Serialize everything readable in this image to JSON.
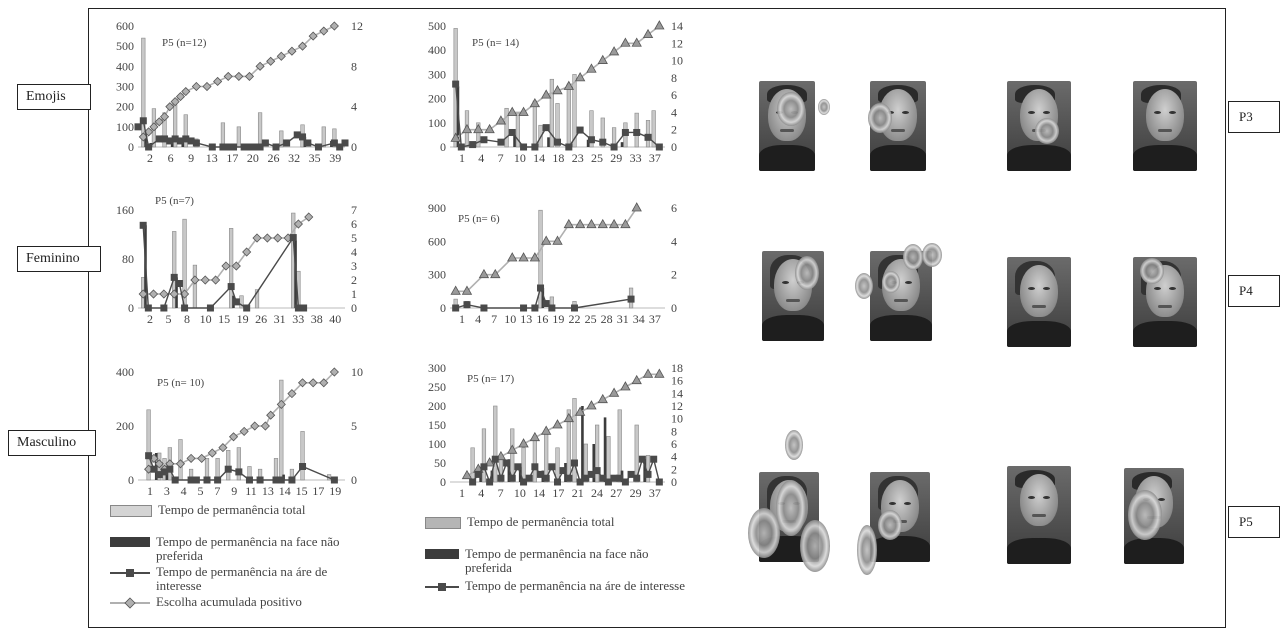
{
  "row_labels": [
    "Emojis",
    "Feminino",
    "Masculino"
  ],
  "participant_labels": [
    "P3",
    "P4",
    "P5"
  ],
  "legend_left": [
    {
      "label": "Tempo de permanência total",
      "kind": "bar-light"
    },
    {
      "label": "Tempo de permanência na face não preferida",
      "kind": "bar-dark"
    },
    {
      "label": "Tempo de permanência na áre de interesse",
      "kind": "line-square"
    },
    {
      "label": "Escolha acumulada positivo",
      "kind": "line-diamond"
    }
  ],
  "legend_right": [
    {
      "label": "Tempo de permanência total",
      "kind": "bar-light"
    },
    {
      "label": "Tempo de permanência na face não preferida",
      "kind": "bar-dark"
    },
    {
      "label": "Tempo de permanência na áre de interesse",
      "kind": "line-square"
    }
  ],
  "chart_data": [
    {
      "type": "bar",
      "title": "P5 (n=12)",
      "xticks": [
        "2",
        "6",
        "9",
        "13",
        "17",
        "20",
        "26",
        "32",
        "35",
        "39"
      ],
      "xrange": [
        1,
        40
      ],
      "ylim": [
        0,
        600
      ],
      "yticks": [
        0,
        100,
        200,
        300,
        400,
        500,
        600
      ],
      "y2lim": [
        0,
        12
      ],
      "y2ticks": [
        0,
        4,
        8,
        12
      ],
      "marker": "diamond",
      "series": [
        {
          "role": "total",
          "x": [
            2,
            4,
            6,
            8,
            10,
            12,
            17,
            20,
            24,
            28,
            32,
            36,
            38
          ],
          "values": [
            540,
            190,
            170,
            210,
            160,
            40,
            120,
            100,
            170,
            80,
            110,
            100,
            90
          ]
        },
        {
          "role": "nonpreferred",
          "x": [
            2,
            3,
            7,
            9,
            22,
            32,
            37
          ],
          "values": [
            60,
            20,
            30,
            20,
            10,
            50,
            30
          ]
        },
        {
          "role": "interest",
          "x": [
            1,
            2,
            3,
            5,
            6,
            7,
            8,
            9,
            10,
            11,
            12,
            15,
            17,
            18,
            19,
            21,
            22,
            23,
            24,
            25,
            27,
            29,
            31,
            32,
            33,
            35,
            38,
            39,
            40
          ],
          "values": [
            100,
            130,
            0,
            40,
            40,
            30,
            40,
            30,
            40,
            30,
            20,
            0,
            0,
            0,
            0,
            0,
            0,
            0,
            0,
            20,
            0,
            20,
            60,
            50,
            20,
            0,
            20,
            0,
            20
          ]
        },
        {
          "role": "cumulative",
          "x": [
            2,
            3,
            4,
            5,
            6,
            7,
            8,
            9,
            10,
            12,
            14,
            16,
            18,
            20,
            22,
            24,
            26,
            28,
            30,
            32,
            34,
            36,
            38
          ],
          "values": [
            1,
            1.5,
            2,
            2.5,
            3,
            4,
            4.5,
            5,
            5.5,
            6,
            6,
            6.5,
            7,
            7,
            7,
            8,
            8.5,
            9,
            9.5,
            10,
            11,
            11.5,
            12
          ]
        }
      ]
    },
    {
      "type": "bar",
      "title": "P5 (n= 14)",
      "xticks": [
        "1",
        "4",
        "7",
        "10",
        "14",
        "18",
        "23",
        "25",
        "29",
        "33",
        "37"
      ],
      "xrange": [
        0,
        38
      ],
      "ylim": [
        0,
        500
      ],
      "yticks": [
        0,
        100,
        200,
        300,
        400,
        500
      ],
      "y2lim": [
        0,
        14
      ],
      "y2ticks": [
        0,
        2,
        4,
        6,
        8,
        10,
        12,
        14
      ],
      "marker": "triangle",
      "series": [
        {
          "role": "total",
          "x": [
            1,
            3,
            5,
            10,
            12,
            15,
            16,
            18,
            19,
            21,
            22,
            25,
            27,
            29,
            31,
            33,
            35,
            36
          ],
          "values": [
            490,
            150,
            100,
            160,
            140,
            190,
            90,
            280,
            180,
            260,
            300,
            150,
            120,
            80,
            100,
            140,
            110,
            150
          ]
        },
        {
          "role": "nonpreferred",
          "x": [
            1,
            11,
            17,
            24,
            30
          ],
          "values": [
            250,
            50,
            40,
            30,
            20
          ]
        },
        {
          "role": "interest",
          "x": [
            1,
            2,
            4,
            6,
            9,
            11,
            13,
            15,
            17,
            19,
            21,
            23,
            25,
            27,
            29,
            31,
            33,
            35,
            37
          ],
          "values": [
            260,
            0,
            10,
            30,
            20,
            60,
            0,
            0,
            80,
            20,
            0,
            70,
            30,
            20,
            0,
            60,
            60,
            40,
            0
          ]
        },
        {
          "role": "cumulative",
          "x": [
            1,
            3,
            5,
            7,
            9,
            11,
            13,
            15,
            17,
            19,
            21,
            23,
            25,
            27,
            29,
            31,
            33,
            35,
            37
          ],
          "values": [
            1,
            2,
            2,
            2,
            3,
            4,
            4,
            5,
            6,
            6.5,
            7,
            8,
            9,
            10,
            11,
            12,
            12,
            13,
            14
          ]
        }
      ]
    },
    {
      "type": "bar",
      "title": "P5 (n=7)",
      "xticks": [
        "2",
        "5",
        "8",
        "10",
        "15",
        "19",
        "26",
        "31",
        "33",
        "38",
        "40"
      ],
      "xrange": [
        1,
        41
      ],
      "ylim": [
        0,
        160
      ],
      "yticks": [
        0,
        80,
        160
      ],
      "y2lim": [
        0,
        7
      ],
      "y2ticks": [
        0,
        1,
        2,
        3,
        4,
        5,
        6,
        7
      ],
      "marker": "diamond",
      "series": [
        {
          "role": "total",
          "x": [
            2,
            8,
            10,
            12,
            19,
            21,
            24,
            31,
            32
          ],
          "values": [
            50,
            125,
            145,
            70,
            130,
            20,
            30,
            155,
            60
          ]
        },
        {
          "role": "nonpreferred",
          "x": [
            2,
            8,
            19,
            31
          ],
          "values": [
            135,
            50,
            20,
            110
          ]
        },
        {
          "role": "interest",
          "x": [
            2,
            3,
            6,
            8,
            9,
            10,
            15,
            19,
            20,
            22,
            31,
            32,
            33
          ],
          "values": [
            135,
            0,
            0,
            50,
            40,
            0,
            0,
            35,
            10,
            0,
            115,
            0,
            0
          ]
        },
        {
          "role": "cumulative",
          "x": [
            2,
            4,
            6,
            8,
            10,
            12,
            14,
            16,
            18,
            20,
            22,
            24,
            26,
            28,
            30,
            32,
            34
          ],
          "values": [
            1,
            1,
            1,
            1,
            1,
            2,
            2,
            2,
            3,
            3,
            4,
            5,
            5,
            5,
            5,
            6,
            6.5
          ]
        }
      ]
    },
    {
      "type": "bar",
      "title": "P5 (n= 6)",
      "xticks": [
        "1",
        "4",
        "7",
        "10",
        "13",
        "16",
        "19",
        "22",
        "25",
        "28",
        "31",
        "34",
        "37"
      ],
      "xrange": [
        0,
        38
      ],
      "ylim": [
        0,
        900
      ],
      "yticks": [
        0,
        300,
        600,
        900
      ],
      "y2lim": [
        0,
        6
      ],
      "y2ticks": [
        0,
        2,
        4,
        6
      ],
      "marker": "triangle",
      "series": [
        {
          "role": "total",
          "x": [
            1,
            3,
            16,
            18,
            22,
            32
          ],
          "values": [
            80,
            60,
            880,
            100,
            60,
            180
          ]
        },
        {
          "role": "nonpreferred",
          "x": [
            16
          ],
          "values": [
            180
          ]
        },
        {
          "role": "interest",
          "x": [
            1,
            3,
            6,
            13,
            15,
            16,
            17,
            18,
            22,
            32
          ],
          "values": [
            0,
            30,
            0,
            0,
            0,
            180,
            40,
            0,
            0,
            80
          ]
        },
        {
          "role": "cumulative",
          "x": [
            1,
            3,
            6,
            8,
            11,
            13,
            15,
            17,
            19,
            21,
            23,
            25,
            27,
            29,
            31,
            33
          ],
          "values": [
            1,
            1,
            2,
            2,
            3,
            3,
            3,
            4,
            4,
            5,
            5,
            5,
            5,
            5,
            5,
            6
          ]
        }
      ]
    },
    {
      "type": "bar",
      "title": "P5 (n= 10)",
      "xticks": [
        "1",
        "3",
        "4",
        "5",
        "7",
        "9",
        "11",
        "13",
        "14",
        "15",
        "17",
        "19"
      ],
      "xrange": [
        0.5,
        20
      ],
      "ylim": [
        0,
        400
      ],
      "yticks": [
        0,
        200,
        400
      ],
      "y2lim": [
        0,
        10
      ],
      "y2ticks": [
        0,
        5,
        10
      ],
      "marker": "diamond",
      "series": [
        {
          "role": "total",
          "x": [
            1.5,
            2.5,
            3,
            3.5,
            4.5,
            5.5,
            7,
            8,
            9,
            10,
            11,
            12,
            13.5,
            14,
            15,
            16,
            18.5
          ],
          "values": [
            260,
            100,
            80,
            120,
            150,
            40,
            80,
            80,
            110,
            120,
            50,
            40,
            80,
            370,
            40,
            180,
            20
          ]
        },
        {
          "role": "nonpreferred",
          "x": [
            2,
            3,
            14
          ],
          "values": [
            100,
            50,
            20
          ]
        },
        {
          "role": "interest",
          "x": [
            1.5,
            2,
            2.5,
            3,
            3.5,
            4,
            5.5,
            6,
            7,
            8,
            9,
            10,
            11,
            12,
            13.5,
            14,
            15,
            16,
            19
          ],
          "values": [
            90,
            40,
            20,
            30,
            40,
            0,
            0,
            0,
            0,
            0,
            40,
            30,
            0,
            0,
            0,
            0,
            0,
            50,
            0
          ]
        },
        {
          "role": "cumulative",
          "x": [
            1.5,
            2,
            2.5,
            3,
            3.5,
            4.5,
            5.5,
            6.5,
            7.5,
            8.5,
            9.5,
            10.5,
            11.5,
            12.5,
            13,
            14,
            15,
            16,
            17,
            18,
            19
          ],
          "values": [
            1,
            2,
            1.5,
            1,
            1.5,
            1.5,
            2,
            2,
            2.5,
            3,
            4,
            4.5,
            5,
            5,
            6,
            7,
            8,
            9,
            9,
            9,
            10
          ]
        }
      ]
    },
    {
      "type": "bar",
      "title": "P5 (n= 17)",
      "xticks": [
        "1",
        "4",
        "7",
        "10",
        "14",
        "17",
        "21",
        "24",
        "27",
        "29",
        "37"
      ],
      "xrange": [
        0,
        38
      ],
      "ylim": [
        0,
        300
      ],
      "yticks": [
        0,
        50,
        100,
        150,
        200,
        250,
        300
      ],
      "y2lim": [
        0,
        18
      ],
      "y2ticks": [
        0,
        2,
        4,
        6,
        8,
        10,
        12,
        14,
        16,
        18
      ],
      "marker": "triangle",
      "series": [
        {
          "role": "total",
          "x": [
            4,
            6,
            8,
            9,
            11,
            13,
            15,
            17,
            19,
            21,
            22,
            24,
            26,
            28,
            30,
            33,
            35
          ],
          "values": [
            90,
            140,
            200,
            70,
            140,
            90,
            120,
            130,
            90,
            190,
            220,
            100,
            150,
            120,
            190,
            150,
            70
          ]
        },
        {
          "role": "nonpreferred",
          "x": [
            5,
            7,
            10,
            12,
            16,
            20,
            23,
            25,
            27,
            30,
            34
          ],
          "values": [
            40,
            30,
            60,
            40,
            30,
            50,
            200,
            100,
            170,
            30,
            60
          ]
        },
        {
          "role": "interest",
          "x": [
            4,
            5,
            6,
            7,
            8,
            9,
            10,
            11,
            12,
            13,
            14,
            15,
            16,
            17,
            18,
            19,
            20,
            21,
            22,
            23,
            24,
            25,
            26,
            27,
            28,
            29,
            30,
            31,
            32,
            33,
            34,
            35,
            36,
            37
          ],
          "values": [
            0,
            20,
            40,
            0,
            60,
            10,
            50,
            10,
            40,
            0,
            10,
            40,
            20,
            10,
            40,
            0,
            30,
            10,
            50,
            0,
            10,
            20,
            30,
            10,
            0,
            10,
            10,
            0,
            20,
            10,
            60,
            20,
            60,
            0
          ]
        },
        {
          "role": "cumulative",
          "x": [
            3,
            5,
            7,
            9,
            11,
            13,
            15,
            17,
            19,
            21,
            23,
            25,
            27,
            29,
            31,
            33,
            35,
            37
          ],
          "values": [
            1,
            2,
            3,
            4,
            5,
            6,
            7,
            8,
            9,
            10,
            11,
            12,
            13,
            14,
            15,
            16,
            17,
            17
          ]
        }
      ]
    }
  ],
  "colors": {
    "bar_light": "#c8c8c8",
    "bar_dark": "#3c3c3c",
    "line_square": "#4a4a4a",
    "line_marker": "#b0b0b0"
  }
}
